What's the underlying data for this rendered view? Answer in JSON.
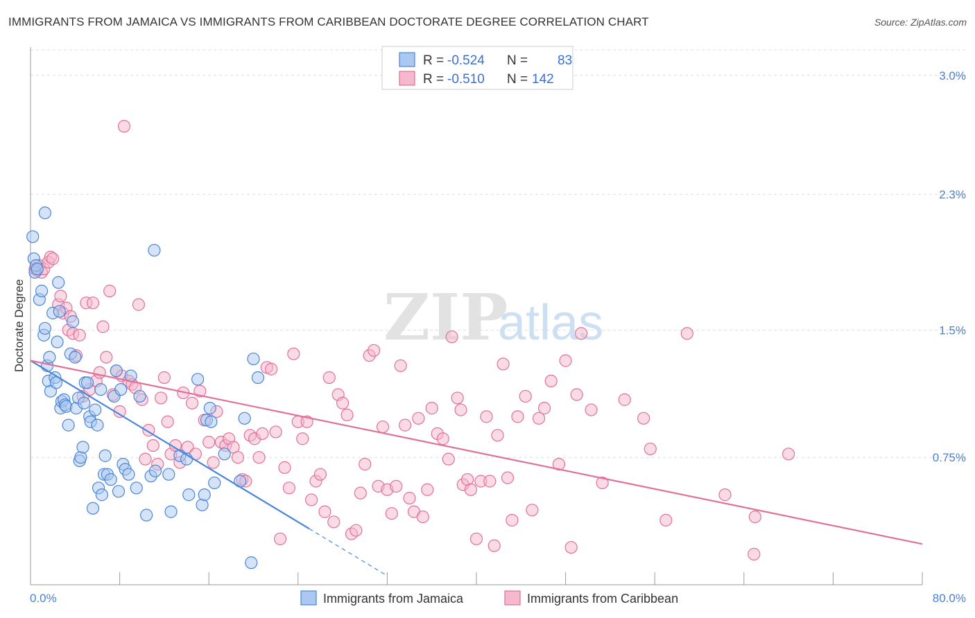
{
  "title": "IMMIGRANTS FROM JAMAICA VS IMMIGRANTS FROM CARIBBEAN DOCTORATE DEGREE CORRELATION CHART",
  "source": "Source: ZipAtlas.com",
  "watermark": {
    "zip": "ZIP",
    "atlas": "atlas"
  },
  "colors": {
    "jamaica": "#4a85d8",
    "jamaica_fill": "#aac8f0",
    "caribbean": "#e0709a",
    "caribbean_fill": "#f6b8cc",
    "tick": "#4a7fd0",
    "grid": "#dddddd"
  },
  "legend": {
    "r_label": "R =",
    "n_label": "N =",
    "rows": [
      {
        "r": "-0.524",
        "n": "83"
      },
      {
        "r": "-0.510",
        "n": "142"
      }
    ]
  },
  "chart_data": {
    "type": "scatter",
    "title": "IMMIGRANTS FROM JAMAICA VS IMMIGRANTS FROM CARIBBEAN DOCTORATE DEGREE CORRELATION CHART",
    "xlabel": "",
    "ylabel": "Doctorate Degree",
    "xlim": [
      0,
      80
    ],
    "ylim": [
      0,
      3.15
    ],
    "x_tick_labels": [
      "0.0%",
      "80.0%"
    ],
    "y_ticks": [
      0.75,
      1.5,
      2.3,
      3.0
    ],
    "y_tick_labels": [
      "0.75%",
      "1.5%",
      "2.3%",
      "3.0%"
    ],
    "grid": true,
    "legend_placement": "top-center",
    "series": [
      {
        "name": "Immigrants from Jamaica",
        "r": -0.524,
        "n": 83,
        "trend": {
          "x0": 0,
          "y0": 1.32,
          "x1": 25,
          "y1": 0.33,
          "dash_to_x": 32
        },
        "points": [
          [
            0.2,
            2.05
          ],
          [
            0.3,
            1.92
          ],
          [
            0.4,
            1.84
          ],
          [
            0.5,
            1.88
          ],
          [
            0.6,
            1.86
          ],
          [
            0.8,
            1.68
          ],
          [
            1.0,
            1.73
          ],
          [
            1.2,
            1.47
          ],
          [
            1.3,
            2.19
          ],
          [
            1.3,
            1.51
          ],
          [
            1.5,
            1.29
          ],
          [
            1.7,
            1.34
          ],
          [
            1.6,
            1.2
          ],
          [
            1.8,
            1.14
          ],
          [
            2.0,
            1.6
          ],
          [
            2.2,
            1.22
          ],
          [
            2.3,
            1.19
          ],
          [
            2.4,
            1.43
          ],
          [
            2.5,
            1.78
          ],
          [
            2.6,
            1.61
          ],
          [
            2.7,
            1.04
          ],
          [
            2.8,
            1.08
          ],
          [
            3.0,
            1.09
          ],
          [
            3.1,
            1.06
          ],
          [
            3.2,
            1.05
          ],
          [
            3.4,
            0.94
          ],
          [
            3.6,
            1.36
          ],
          [
            3.8,
            1.55
          ],
          [
            4.0,
            1.34
          ],
          [
            4.1,
            1.04
          ],
          [
            4.3,
            1.1
          ],
          [
            4.4,
            0.73
          ],
          [
            4.5,
            0.75
          ],
          [
            4.7,
            0.81
          ],
          [
            4.8,
            1.07
          ],
          [
            4.9,
            1.19
          ],
          [
            5.1,
            1.19
          ],
          [
            5.3,
            0.99
          ],
          [
            5.4,
            0.96
          ],
          [
            5.6,
            0.45
          ],
          [
            5.8,
            1.03
          ],
          [
            6.0,
            0.94
          ],
          [
            6.1,
            0.57
          ],
          [
            6.3,
            1.15
          ],
          [
            6.4,
            0.53
          ],
          [
            6.6,
            0.65
          ],
          [
            6.7,
            0.76
          ],
          [
            6.9,
            0.65
          ],
          [
            7.2,
            0.62
          ],
          [
            7.5,
            1.11
          ],
          [
            7.7,
            1.26
          ],
          [
            7.9,
            0.55
          ],
          [
            8.1,
            1.15
          ],
          [
            8.3,
            0.71
          ],
          [
            8.5,
            0.68
          ],
          [
            8.8,
            0.65
          ],
          [
            9.0,
            1.23
          ],
          [
            9.5,
            0.57
          ],
          [
            9.8,
            1.11
          ],
          [
            10.4,
            0.41
          ],
          [
            10.8,
            0.64
          ],
          [
            11.1,
            1.97
          ],
          [
            11.2,
            0.67
          ],
          [
            12.4,
            0.65
          ],
          [
            12.6,
            0.43
          ],
          [
            13.4,
            0.76
          ],
          [
            14.0,
            0.74
          ],
          [
            14.2,
            0.53
          ],
          [
            15.0,
            1.21
          ],
          [
            15.4,
            0.47
          ],
          [
            15.6,
            0.53
          ],
          [
            15.8,
            0.97
          ],
          [
            16.1,
            1.04
          ],
          [
            16.2,
            0.96
          ],
          [
            16.5,
            0.6
          ],
          [
            17.4,
            0.77
          ],
          [
            18.8,
            0.61
          ],
          [
            19.2,
            0.98
          ],
          [
            19.8,
            0.13
          ],
          [
            20.0,
            1.33
          ],
          [
            20.4,
            1.22
          ]
        ]
      },
      {
        "name": "Immigrants from Caribbean",
        "r": -0.51,
        "n": 142,
        "trend": {
          "x0": 0,
          "y0": 1.32,
          "x1": 80,
          "y1": 0.24
        },
        "points": [
          [
            0.4,
            1.86
          ],
          [
            0.6,
            1.85
          ],
          [
            0.8,
            1.88
          ],
          [
            1.0,
            1.84
          ],
          [
            1.2,
            1.86
          ],
          [
            1.6,
            1.9
          ],
          [
            1.8,
            1.93
          ],
          [
            2.0,
            1.92
          ],
          [
            2.5,
            1.65
          ],
          [
            2.7,
            1.7
          ],
          [
            2.9,
            1.6
          ],
          [
            3.2,
            1.63
          ],
          [
            3.4,
            1.5
          ],
          [
            3.6,
            1.58
          ],
          [
            3.8,
            1.48
          ],
          [
            4.1,
            1.35
          ],
          [
            4.4,
            1.47
          ],
          [
            4.7,
            1.11
          ],
          [
            5.0,
            1.66
          ],
          [
            5.3,
            1.15
          ],
          [
            5.6,
            1.66
          ],
          [
            5.9,
            1.2
          ],
          [
            6.2,
            1.25
          ],
          [
            6.5,
            1.52
          ],
          [
            6.8,
            1.34
          ],
          [
            7.1,
            1.73
          ],
          [
            7.4,
            1.12
          ],
          [
            7.7,
            1.26
          ],
          [
            8.0,
            1.02
          ],
          [
            8.2,
            1.23
          ],
          [
            8.4,
            2.7
          ],
          [
            8.8,
            1.2
          ],
          [
            9.1,
            1.18
          ],
          [
            9.4,
            1.16
          ],
          [
            9.7,
            1.65
          ],
          [
            10.0,
            1.09
          ],
          [
            10.3,
            0.74
          ],
          [
            10.6,
            0.91
          ],
          [
            11.0,
            0.82
          ],
          [
            11.4,
            0.71
          ],
          [
            11.7,
            1.1
          ],
          [
            12.0,
            1.22
          ],
          [
            12.3,
            0.96
          ],
          [
            12.6,
            0.77
          ],
          [
            13.0,
            0.82
          ],
          [
            13.4,
            0.72
          ],
          [
            13.7,
            1.13
          ],
          [
            14.1,
            0.81
          ],
          [
            14.5,
            1.07
          ],
          [
            14.8,
            0.77
          ],
          [
            15.2,
            1.14
          ],
          [
            15.6,
            0.97
          ],
          [
            16.0,
            0.84
          ],
          [
            16.4,
            0.72
          ],
          [
            16.7,
            1.02
          ],
          [
            17.1,
            0.84
          ],
          [
            17.5,
            0.82
          ],
          [
            17.8,
            0.86
          ],
          [
            18.2,
            0.81
          ],
          [
            18.6,
            0.75
          ],
          [
            19.0,
            0.62
          ],
          [
            19.3,
            0.61
          ],
          [
            19.7,
            0.88
          ],
          [
            20.1,
            0.86
          ],
          [
            20.5,
            0.75
          ],
          [
            20.8,
            0.89
          ],
          [
            21.2,
            1.28
          ],
          [
            21.6,
            1.27
          ],
          [
            22.0,
            0.9
          ],
          [
            22.4,
            0.27
          ],
          [
            22.8,
            0.69
          ],
          [
            23.2,
            0.57
          ],
          [
            23.6,
            1.36
          ],
          [
            24.0,
            0.96
          ],
          [
            24.4,
            0.86
          ],
          [
            24.8,
            0.96
          ],
          [
            25.2,
            0.5
          ],
          [
            25.6,
            0.61
          ],
          [
            26.0,
            0.65
          ],
          [
            26.4,
            0.43
          ],
          [
            26.8,
            1.22
          ],
          [
            27.2,
            0.37
          ],
          [
            27.6,
            1.12
          ],
          [
            28.0,
            1.07
          ],
          [
            28.4,
            1.0
          ],
          [
            28.8,
            0.3
          ],
          [
            29.2,
            0.32
          ],
          [
            29.6,
            0.54
          ],
          [
            30.0,
            0.71
          ],
          [
            30.4,
            1.35
          ],
          [
            30.8,
            1.38
          ],
          [
            31.2,
            0.58
          ],
          [
            31.6,
            0.93
          ],
          [
            32.0,
            0.56
          ],
          [
            32.4,
            0.42
          ],
          [
            32.8,
            0.58
          ],
          [
            33.2,
            1.29
          ],
          [
            33.6,
            0.94
          ],
          [
            34.0,
            0.51
          ],
          [
            34.4,
            0.43
          ],
          [
            34.8,
            0.98
          ],
          [
            35.2,
            0.4
          ],
          [
            35.6,
            0.56
          ],
          [
            36.0,
            1.04
          ],
          [
            36.5,
            0.89
          ],
          [
            37.0,
            0.86
          ],
          [
            37.5,
            0.74
          ],
          [
            37.8,
            1.46
          ],
          [
            38.3,
            1.1
          ],
          [
            38.6,
            1.03
          ],
          [
            38.8,
            0.59
          ],
          [
            39.2,
            0.62
          ],
          [
            39.5,
            0.56
          ],
          [
            40.0,
            0.27
          ],
          [
            40.4,
            0.61
          ],
          [
            40.9,
            0.99
          ],
          [
            41.2,
            0.61
          ],
          [
            41.6,
            0.23
          ],
          [
            41.9,
            0.88
          ],
          [
            42.4,
            1.3
          ],
          [
            42.8,
            0.63
          ],
          [
            43.2,
            0.38
          ],
          [
            43.7,
            0.99
          ],
          [
            44.4,
            1.11
          ],
          [
            45.0,
            0.44
          ],
          [
            45.6,
            0.98
          ],
          [
            46.1,
            1.04
          ],
          [
            46.7,
            1.2
          ],
          [
            47.4,
            0.71
          ],
          [
            48.0,
            1.32
          ],
          [
            48.5,
            0.22
          ],
          [
            49.0,
            1.12
          ],
          [
            49.4,
            1.48
          ],
          [
            50.3,
            1.03
          ],
          [
            51.3,
            0.6
          ],
          [
            53.3,
            1.09
          ],
          [
            55.0,
            0.98
          ],
          [
            55.6,
            0.8
          ],
          [
            57.0,
            0.38
          ],
          [
            58.9,
            1.48
          ],
          [
            62.3,
            0.53
          ],
          [
            65.0,
            0.4
          ],
          [
            64.9,
            0.18
          ],
          [
            68.0,
            0.77
          ]
        ]
      }
    ]
  },
  "bottom_legend": [
    {
      "label": "Immigrants from Jamaica"
    },
    {
      "label": "Immigrants from Caribbean"
    }
  ]
}
